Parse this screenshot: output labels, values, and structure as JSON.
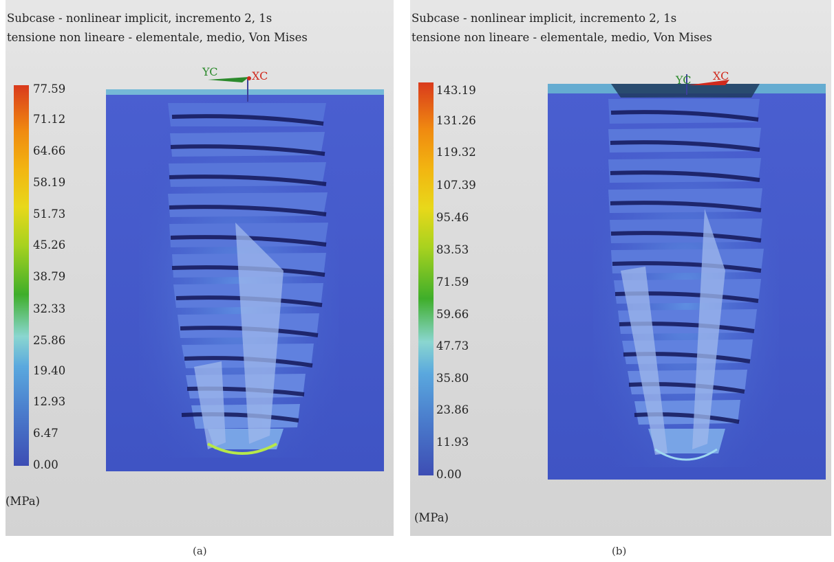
{
  "panel_a": {
    "title_line1": "Subcase - nonlinear implicit, incremento 2, 1s",
    "title_line2": "tensione non lineare - elementale, medio, Von Mises",
    "legend_ticks": [
      "77.59",
      "71.12",
      "64.66",
      "58.19",
      "51.73",
      "45.26",
      "38.79",
      "32.33",
      "25.86",
      "19.40",
      "12.93",
      "6.47",
      "0.00"
    ],
    "units": "(MPa)",
    "axis_y": "YC",
    "axis_x": "XC",
    "caption": "(a)"
  },
  "panel_b": {
    "title_line1": "Subcase - nonlinear implicit, incremento 2, 1s",
    "title_line2": "tensione non lineare - elementale, medio, Von Mises",
    "legend_ticks": [
      "143.19",
      "131.26",
      "119.32",
      "107.39",
      "95.46",
      "83.53",
      "71.59",
      "59.66",
      "47.73",
      "35.80",
      "23.86",
      "11.93",
      "0.00"
    ],
    "units": "(MPa)",
    "axis_y": "YC",
    "axis_x": "XC",
    "caption": "(b)"
  },
  "colors": {
    "legend_top": "#d93a1c",
    "legend_orange": "#f08a10",
    "legend_yellow": "#e8d81a",
    "legend_green": "#3fae2a",
    "legend_cyan": "#8ad6d0",
    "legend_lightblue": "#5aa8de",
    "legend_bottom": "#3d4db4",
    "block_blue": "#4055c8",
    "axis_yc": "#2c8a2c",
    "axis_xc": "#d02a1e"
  }
}
